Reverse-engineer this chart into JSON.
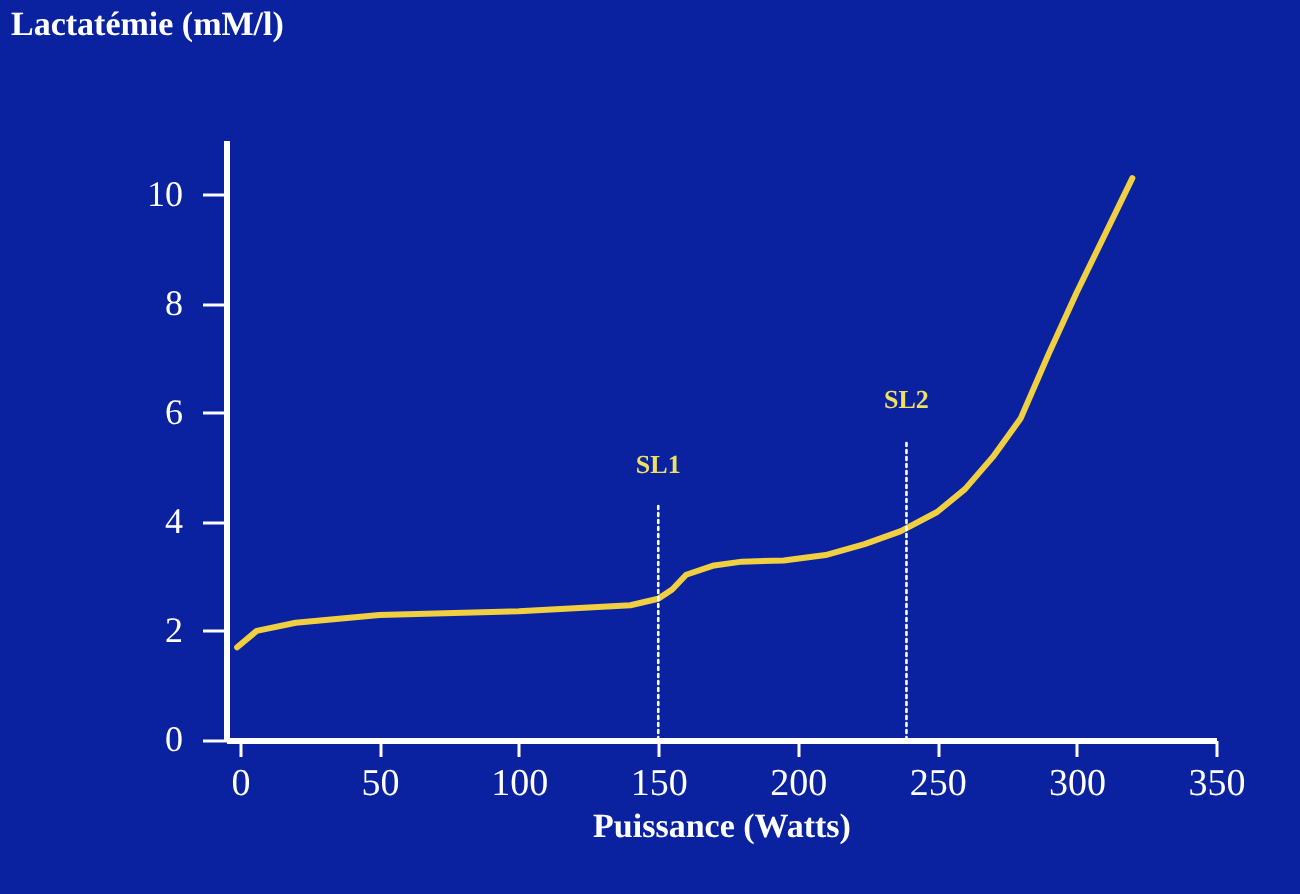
{
  "chart_data": {
    "type": "line",
    "xlabel": "Puissance (Watts)",
    "ylabel": "Lactatémie (mM/l)",
    "xlim": [
      -5,
      350
    ],
    "ylim": [
      0,
      11
    ],
    "xticks": [
      0,
      50,
      100,
      150,
      200,
      250,
      300,
      350
    ],
    "yticks": [
      0,
      2,
      4,
      6,
      8,
      10
    ],
    "series": [
      {
        "color": "#f0d040",
        "x": [
          -1,
          6,
          20,
          50,
          100,
          140,
          150,
          155,
          160,
          170,
          180,
          195,
          210,
          224,
          237,
          250,
          260,
          270,
          280,
          290,
          300,
          310,
          320
        ],
        "values": [
          1.7,
          2.0,
          2.15,
          2.29,
          2.36,
          2.47,
          2.59,
          2.76,
          3.03,
          3.2,
          3.27,
          3.29,
          3.39,
          3.59,
          3.83,
          4.18,
          4.6,
          5.19,
          5.9,
          7.08,
          8.2,
          9.25,
          10.3
        ]
      },
      {
        "name": "SL1",
        "color": "#ffffff",
        "line_style": "dotted",
        "x": [
          150,
          150
        ],
        "values": [
          0,
          4.3
        ]
      },
      {
        "name": "SL2",
        "color": "#ffffff",
        "line_style": "dotted",
        "x": [
          239,
          239
        ],
        "values": [
          0,
          5.5
        ]
      }
    ]
  }
}
